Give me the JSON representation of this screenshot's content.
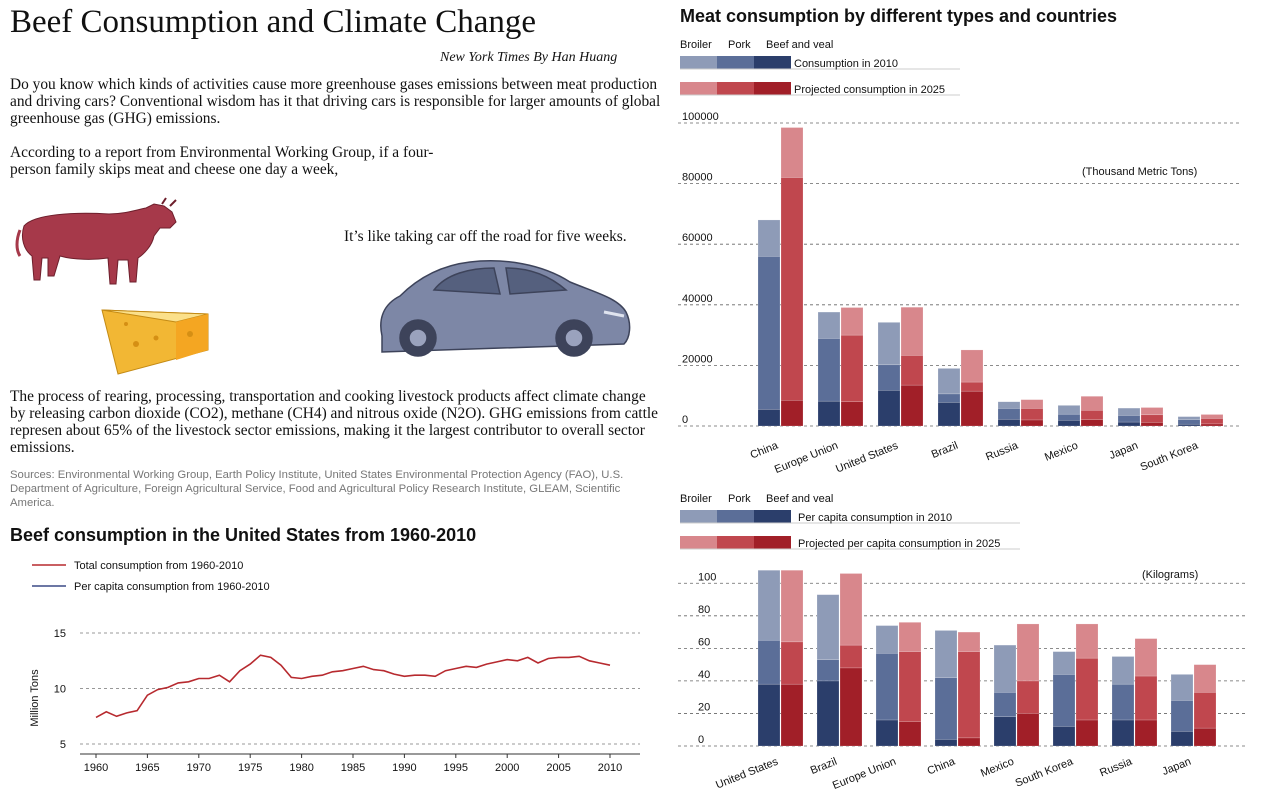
{
  "title": "Beef Consumption and Climate Change",
  "byline": "New York Times   By Han Huang",
  "paragraphs": {
    "intro": "Do you know which kinds of activities cause more greenhouse gases emissions between meat production and driving cars? Conventional wisdom has it that driving cars is responsible for larger amounts of global greenhouse gas (GHG) emissions.",
    "report": "According to a report from Environmental Working Group, if a four-person family skips meat and cheese one day a week,",
    "car": "It’s like taking car off the road for five weeks.",
    "process": "The process of rearing, processing, transportation and cooking livestock products affect climate change by releasing carbon dioxide (CO2), methane (CH4) and nitrous oxide (N2O). GHG emissions from cattle represen about 65% of the livestock sector emissions, making it the largest contributor to overall sector emissions.",
    "sources": "Sources: Environmental Working Group, Earth Policy Institute, United States Environmental Protection Agency (FAO), U.S. Department of Agriculture, Foreign Agricultural Service, Food and Agricultural Policy Research Institute, GLEAM, Scientific America."
  },
  "colors": {
    "blue": [
      "#8e9bb7",
      "#5b6e98",
      "#2b3e6b"
    ],
    "red": [
      "#d8878c",
      "#c0474e",
      "#a11f28"
    ],
    "line_total": "#b72a2f",
    "line_percapita": "#3b4a86",
    "cow": "#a6394a",
    "car": "#7d87a6",
    "cheese": "#f2b734"
  },
  "chart_data": [
    {
      "type": "line",
      "title": "Beef consumption in the United States from 1960-2010",
      "ylabel": "Million Tons",
      "ylim": [
        5,
        15
      ],
      "yticks": [
        "5",
        "10",
        "15"
      ],
      "xticks": [
        "1960",
        "1965",
        "1970",
        "1975",
        "1980",
        "1985",
        "1990",
        "1995",
        "2000",
        "2005",
        "2010"
      ],
      "legend": [
        "Total  consumption from 1960-2010",
        "Per capita  consumption from 1960-2010"
      ],
      "series": [
        {
          "name": "Total  consumption from 1960-2010",
          "x": [
            1960,
            1961,
            1962,
            1963,
            1964,
            1965,
            1966,
            1967,
            1968,
            1969,
            1970,
            1971,
            1972,
            1973,
            1974,
            1975,
            1976,
            1977,
            1978,
            1979,
            1980,
            1981,
            1982,
            1983,
            1984,
            1985,
            1986,
            1987,
            1988,
            1989,
            1990,
            1991,
            1992,
            1993,
            1994,
            1995,
            1996,
            1997,
            1998,
            1999,
            2000,
            2001,
            2002,
            2003,
            2004,
            2005,
            2006,
            2007,
            2008,
            2009,
            2010
          ],
          "y": [
            7.4,
            7.9,
            7.5,
            7.8,
            8.0,
            9.4,
            9.9,
            10.1,
            10.5,
            10.6,
            10.9,
            10.9,
            11.2,
            10.6,
            11.6,
            12.2,
            13.0,
            12.8,
            12.1,
            11.0,
            10.9,
            11.1,
            11.2,
            11.5,
            11.6,
            11.8,
            12.0,
            11.7,
            11.6,
            11.3,
            11.1,
            11.2,
            11.2,
            11.1,
            11.6,
            11.8,
            12.0,
            11.9,
            12.2,
            12.4,
            12.6,
            12.5,
            12.8,
            12.3,
            12.7,
            12.8,
            12.8,
            12.9,
            12.5,
            12.3,
            12.1
          ]
        }
      ]
    },
    {
      "type": "bar",
      "title": "Meat consumption by different types and countries",
      "unit_label": "(Thousand Metric Tons)",
      "legend_types": [
        "Broiler",
        "Pork",
        "Beef and veal"
      ],
      "legend_series": [
        "Consumption in 2010",
        "Projected consumption in 2025"
      ],
      "ylim": [
        0,
        100000
      ],
      "yticks": [
        "0",
        "20000",
        "40000",
        "60000",
        "80000",
        "100000"
      ],
      "categories": [
        "China",
        "Europe Union",
        "United States",
        "Brazil",
        "Russia",
        "Mexico",
        "Japan",
        "South Korea"
      ],
      "series": [
        {
          "name": "Consumption in 2010",
          "stack": {
            "Beef and veal": [
              5500,
              8200,
              11800,
              7800,
              2200,
              1900,
              1300,
              600
            ],
            "Pork": [
              50500,
              20700,
              8400,
              2800,
              3600,
              2000,
              2200,
              1500
            ],
            "Broiler": [
              12000,
              8700,
              14000,
              8400,
              2200,
              2900,
              2400,
              1000
            ]
          }
        },
        {
          "name": "Projected consumption in 2025",
          "stack": {
            "Beef and veal": [
              8500,
              8000,
              13500,
              11500,
              2000,
              2100,
              1200,
              700
            ],
            "Pork": [
              73500,
              22000,
              9800,
              3000,
              3800,
              3100,
              2500,
              1800
            ],
            "Broiler": [
              16500,
              9100,
              15900,
              10600,
              2900,
              4600,
              2400,
              1300
            ]
          }
        }
      ]
    },
    {
      "type": "bar",
      "unit_label": "(Kilograms)",
      "legend_types": [
        "Broiler",
        "Pork",
        "Beef and veal"
      ],
      "legend_series": [
        "Per capita consumption in 2010",
        "Projected per capita consumption in 2025"
      ],
      "ylim": [
        0,
        110
      ],
      "yticks": [
        "0",
        "20",
        "40",
        "60",
        "80",
        "100"
      ],
      "categories": [
        "United States",
        "Brazil",
        "Europe Union",
        "China",
        "Mexico",
        "South Korea",
        "Russia",
        "Japan"
      ],
      "series": [
        {
          "name": "Per capita consumption in 2010",
          "stack": {
            "Beef and veal": [
              38,
              40,
              16,
              4,
              18,
              12,
              16,
              9
            ],
            "Pork": [
              27,
              13,
              41,
              38,
              15,
              32,
              22,
              19
            ],
            "Broiler": [
              43,
              40,
              17,
              29,
              29,
              14,
              17,
              16
            ]
          }
        },
        {
          "name": "Projected per capita consumption in 2025",
          "stack": {
            "Beef and veal": [
              38,
              48,
              15,
              5,
              20,
              16,
              16,
              11
            ],
            "Pork": [
              26,
              14,
              43,
              53,
              20,
              38,
              27,
              22
            ],
            "Broiler": [
              44,
              44,
              18,
              12,
              35,
              21,
              23,
              17
            ]
          }
        }
      ]
    }
  ]
}
